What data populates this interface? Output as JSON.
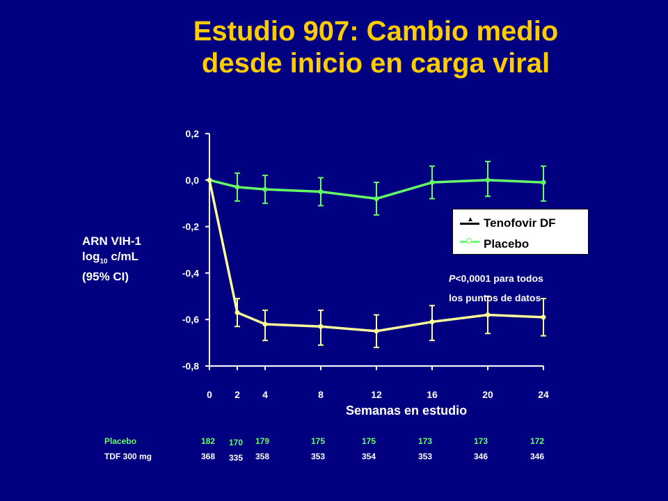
{
  "title_line1": "Estudio 907: Cambio medio",
  "title_line2": "desde inicio en carga viral",
  "ylabel": {
    "line1": "ARN VIH-1",
    "line2_pre": "log",
    "line2_sub": "10",
    "line2_post": " c/mL",
    "line3": "(95% CI)"
  },
  "xlabel": "Semanas en estudio",
  "legend": [
    {
      "label": "Tenofovir DF",
      "color": "#FFFF99",
      "marker": "triangle"
    },
    {
      "label": "Placebo",
      "color": "#66FF66",
      "marker": "circle"
    }
  ],
  "pnote": {
    "p": "P",
    "rest": "<0,0001 para todos",
    "line2": "los puntos de datos"
  },
  "colors": {
    "background": "#000080",
    "title": "#FFCC00",
    "tdf": "#FFFF99",
    "placebo": "#66FF66",
    "axis": "#FFFFFF"
  },
  "chart_data": {
    "type": "line",
    "x": [
      0,
      2,
      4,
      8,
      12,
      16,
      20,
      24
    ],
    "ylim": [
      -0.8,
      0.2
    ],
    "xlim": [
      0,
      24
    ],
    "yticks": [
      0.2,
      0.0,
      -0.2,
      -0.4,
      -0.6,
      -0.8
    ],
    "ytick_labels": [
      "0,2",
      "0,0",
      "-0,2",
      "-0,4",
      "-0,6",
      "-0,8"
    ],
    "xticks": [
      0,
      2,
      4,
      8,
      12,
      16,
      20,
      24
    ],
    "xtick_labels": [
      "0",
      "2",
      "4",
      "8",
      "12",
      "16",
      "20",
      "24"
    ],
    "series": [
      {
        "name": "Placebo",
        "color": "#66FF66",
        "values": [
          0.0,
          -0.03,
          -0.04,
          -0.05,
          -0.08,
          -0.01,
          0.0,
          -0.01
        ],
        "ci_low": [
          0.0,
          -0.09,
          -0.1,
          -0.11,
          -0.15,
          -0.08,
          -0.07,
          -0.09
        ],
        "ci_high": [
          0.0,
          0.03,
          0.02,
          0.01,
          -0.01,
          0.06,
          0.08,
          0.06
        ]
      },
      {
        "name": "Tenofovir DF",
        "color": "#FFFF99",
        "values": [
          0.0,
          -0.57,
          -0.62,
          -0.63,
          -0.65,
          -0.61,
          -0.58,
          -0.59
        ],
        "ci_low": [
          0.0,
          -0.63,
          -0.69,
          -0.71,
          -0.72,
          -0.69,
          -0.66,
          -0.67
        ],
        "ci_high": [
          0.0,
          -0.51,
          -0.56,
          -0.56,
          -0.58,
          -0.54,
          -0.5,
          -0.51
        ]
      }
    ]
  },
  "counts": {
    "placebo_label": "Placebo",
    "tdf_label": "TDF 300 mg",
    "placebo": [
      "182",
      "170",
      "179",
      "175",
      "175",
      "173",
      "173",
      "172"
    ],
    "tdf": [
      "368",
      "335",
      "358",
      "353",
      "354",
      "353",
      "346",
      "346"
    ]
  }
}
